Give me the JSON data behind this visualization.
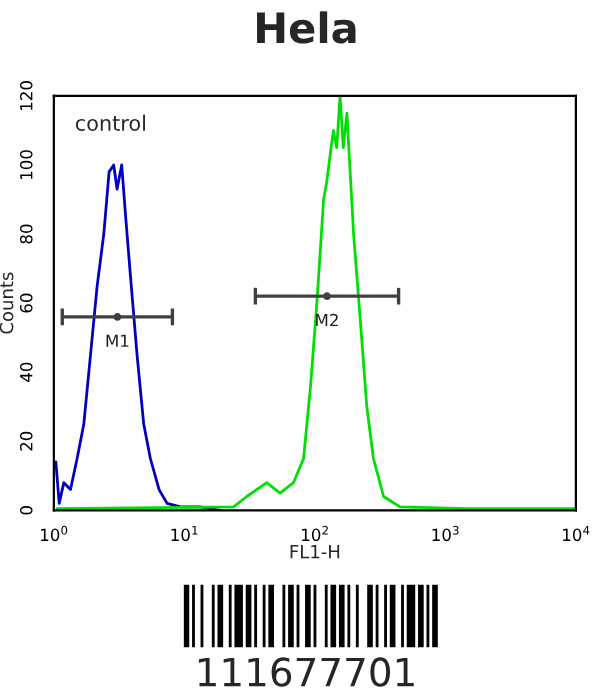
{
  "chart_data": {
    "type": "line",
    "title": "Hela",
    "xlabel": "FL1-H",
    "ylabel": "Counts",
    "log": "x",
    "xlim": [
      1,
      10000
    ],
    "xticks": [
      {
        "value": 1,
        "label": "10$^{0}$"
      },
      {
        "value": 10,
        "label": "10$^{1}$"
      },
      {
        "value": 100,
        "label": "10$^{2}$"
      },
      {
        "value": 1000,
        "label": "10$^{3}$"
      },
      {
        "value": 10000,
        "label": "10$^{4}$"
      }
    ],
    "ylim": [
      0,
      120
    ],
    "yticks": [
      0,
      20,
      40,
      60,
      80,
      100,
      120
    ],
    "grid": false,
    "series": [
      {
        "color": "#0000c0",
        "x": [
          1.036,
          1.099,
          1.193,
          1.341,
          1.508,
          1.697,
          1.909,
          2.147,
          2.414,
          2.65,
          2.874,
          3.05,
          3.31,
          3.55,
          3.86,
          4.34,
          4.88,
          5.49,
          6.4,
          7.37,
          9.33,
          13.2,
          18.8
        ],
        "values": [
          14,
          2,
          8,
          6,
          15,
          25,
          45,
          65,
          80,
          98,
          100,
          93,
          100,
          85,
          68,
          45,
          25,
          15,
          6,
          2,
          1,
          1,
          0
        ]
      },
      {
        "color": "#00e000",
        "x": [
          1.06,
          23.8,
          30.1,
          42.8,
          54.1,
          68.5,
          81.9,
          92.2,
          103.6,
          116.7,
          123.1,
          138.6,
          147,
          156,
          165,
          176,
          198,
          223,
          250,
          281,
          336,
          450,
          1458,
          10000
        ],
        "values": [
          0.5,
          1,
          4,
          8,
          5,
          8,
          15,
          35,
          60,
          90,
          95,
          110,
          105,
          120,
          105,
          115,
          80,
          55,
          30,
          15,
          4,
          1,
          0.5,
          0.5
        ]
      },
      {
        "type": "line",
        "name": "M1",
        "color": "#404040",
        "marker": "circle",
        "x": [
          3.07
        ],
        "values": [
          56
        ],
        "xerrors": [
          [
            1.16,
            8.1
          ]
        ]
      },
      {
        "type": "line",
        "name": "M2",
        "color": "#404040",
        "marker": "circle",
        "x": [
          123.8
        ],
        "values": [
          62
        ],
        "xerrors": [
          [
            35,
            438
          ]
        ]
      }
    ],
    "annotations": [
      "control",
      "111677701"
    ]
  }
}
